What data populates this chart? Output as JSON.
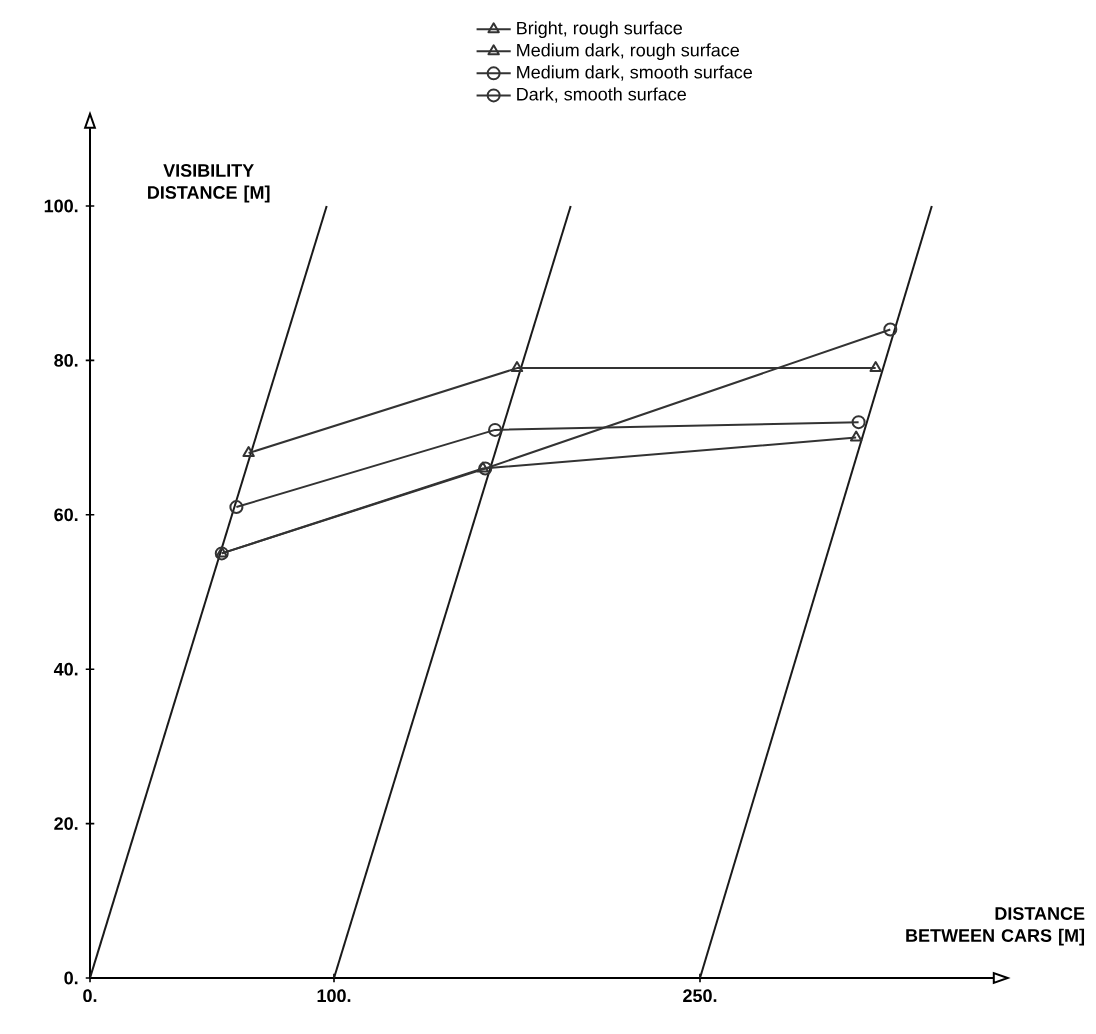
{
  "chart_data": {
    "type": "line",
    "xlabel": "DISTANCE BETWEEN CARS [M]",
    "ylabel": "VISIBILITY DISTANCE [M]",
    "xlim": [
      0,
      370
    ],
    "ylim": [
      0,
      110
    ],
    "xticks": [
      {
        "value": 0,
        "label": "0."
      },
      {
        "value": 100,
        "label": "100."
      },
      {
        "value": 250,
        "label": "250."
      }
    ],
    "yticks": [
      {
        "value": 0,
        "label": "0."
      },
      {
        "value": 20,
        "label": "20."
      },
      {
        "value": 40,
        "label": "40."
      },
      {
        "value": 60,
        "label": "60."
      },
      {
        "value": 80,
        "label": "80."
      },
      {
        "value": 100,
        "label": "100."
      }
    ],
    "legend": "top",
    "grid": false,
    "line_style": "solid",
    "series": [
      {
        "x": [
          0,
          97
        ],
        "values": [
          0,
          100
        ],
        "color": "#1a1a1a",
        "marker": "none"
      },
      {
        "x": [
          100,
          197
        ],
        "values": [
          0,
          100
        ],
        "color": "#1a1a1a",
        "marker": "none"
      },
      {
        "x": [
          250,
          345
        ],
        "values": [
          0,
          100
        ],
        "color": "#1a1a1a",
        "marker": "none"
      },
      {
        "name": "Bright, rough surface",
        "x": [
          65,
          175,
          322
        ],
        "values": [
          68,
          79,
          79
        ],
        "color": "#333333",
        "marker": "triangle"
      },
      {
        "name": "Medium dark, rough surface",
        "x": [
          54,
          161,
          314
        ],
        "values": [
          55,
          66,
          70
        ],
        "color": "#333333",
        "marker": "triangle"
      },
      {
        "name": "Medium dark, smooth surface",
        "x": [
          60,
          166,
          315
        ],
        "values": [
          61,
          71,
          72
        ],
        "color": "#333333",
        "marker": "circle"
      },
      {
        "name": "Dark, smooth surface",
        "x": [
          54,
          162,
          328
        ],
        "values": [
          55,
          66,
          84
        ],
        "color": "#333333",
        "marker": "circle"
      }
    ]
  }
}
